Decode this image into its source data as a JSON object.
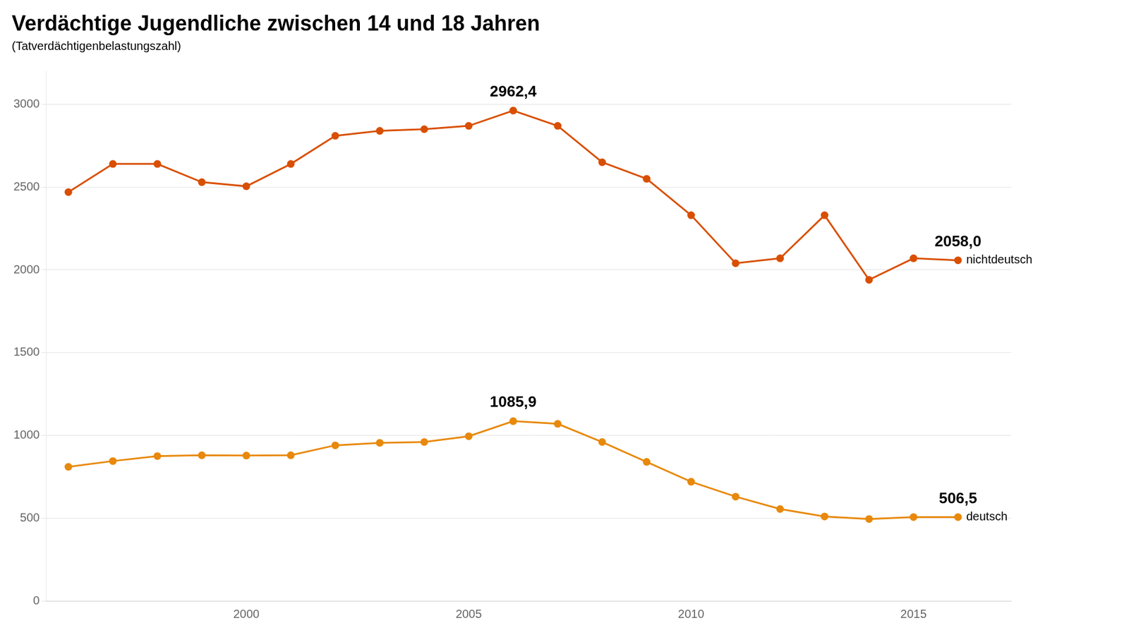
{
  "chart_data": {
    "type": "line",
    "title": "Verdächtige Jugendliche zwischen 14 und 18 Jahren",
    "subtitle": "(Tatverdächtigenbelastungszahl)",
    "x": [
      1996,
      1997,
      1998,
      1999,
      2000,
      2001,
      2002,
      2003,
      2004,
      2005,
      2006,
      2007,
      2008,
      2009,
      2010,
      2011,
      2012,
      2013,
      2014,
      2015,
      2016
    ],
    "series": [
      {
        "name": "nichtdeutsch",
        "color": "#d94f00",
        "marker": "circle",
        "values": [
          2470,
          2640,
          2640,
          2530,
          2505,
          2640,
          2810,
          2840,
          2850,
          2870,
          2962.4,
          2870,
          2650,
          2550,
          2330,
          2040,
          2070,
          2330,
          1940,
          2070,
          2058.0
        ]
      },
      {
        "name": "deutsch",
        "color": "#e8890c",
        "marker": "circle",
        "values": [
          810,
          845,
          875,
          880,
          878,
          880,
          940,
          955,
          960,
          995,
          1085.9,
          1070,
          960,
          840,
          720,
          630,
          555,
          510,
          495,
          506.5,
          506.5
        ]
      }
    ],
    "xlim": [
      1995.5,
      2017.2
    ],
    "xticks": [
      2000,
      2005,
      2010,
      2015
    ],
    "ylim": [
      0,
      3200
    ],
    "yticks": [
      0,
      500,
      1000,
      1500,
      2000,
      2500,
      3000
    ],
    "grid": true,
    "annotations": [
      {
        "text": "2962,4",
        "x": 2006,
        "y": 2962.4
      },
      {
        "text": "1085,9",
        "x": 2006,
        "y": 1085.9
      },
      {
        "text": "2058,0",
        "x": 2016,
        "y": 2058.0
      },
      {
        "text": "506,5",
        "x": 2016,
        "y": 506.5
      }
    ]
  }
}
